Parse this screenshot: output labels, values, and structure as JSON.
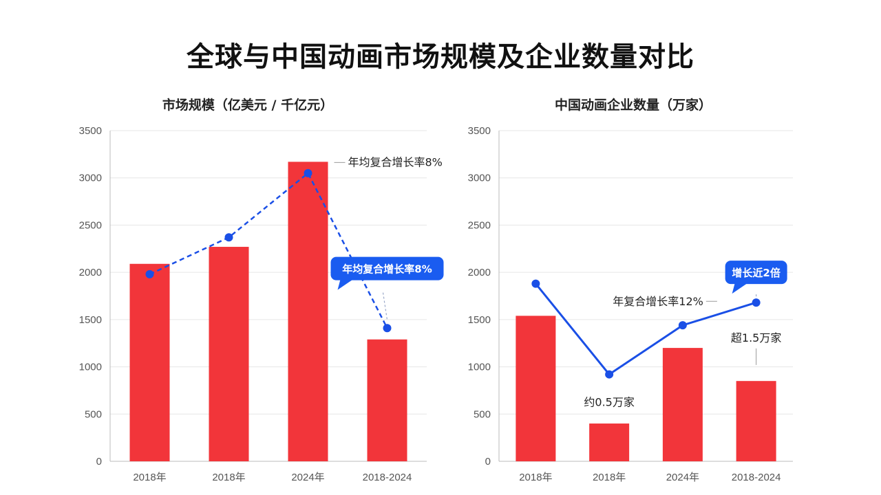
{
  "title": "全球与中国动画市场规模及企业数量对比",
  "colors": {
    "bar": "#f2353a",
    "line": "#1a4fe6",
    "callout": "#1a5cf0",
    "grid": "#e6e6e6",
    "axis": "#bbbbbb"
  },
  "chart_data": [
    {
      "type": "bar",
      "title": "市场规模（亿美元 / 千亿元）",
      "categories": [
        "2018年",
        "2018年",
        "2024年",
        "2018-2024"
      ],
      "ylim": [
        0,
        3500
      ],
      "yticks": [
        0,
        500,
        1000,
        1500,
        2000,
        2500,
        3000,
        3500
      ],
      "grid": true,
      "series": [
        {
          "type": "bar",
          "values": [
            2090,
            2270,
            3170,
            1290
          ]
        },
        {
          "type": "line",
          "style": "dashed",
          "values": [
            1980,
            2370,
            3050,
            1410
          ]
        }
      ],
      "annotations": [
        {
          "text": "年均复合增长率8%",
          "category_index": 2,
          "y": 3170,
          "style": "label"
        },
        {
          "text": "年均复合增长率8%",
          "category_index": 3,
          "y": 2040,
          "style": "callout"
        }
      ]
    },
    {
      "type": "bar",
      "title": "中国动画企业数量（万家）",
      "categories": [
        "2018年",
        "2018年",
        "2024年",
        "2018-2024"
      ],
      "ylim": [
        0,
        3500
      ],
      "yticks": [
        0,
        500,
        1000,
        1500,
        2000,
        2500,
        3000,
        3500
      ],
      "grid": true,
      "series": [
        {
          "type": "bar",
          "values": [
            1540,
            400,
            1200,
            850
          ]
        },
        {
          "type": "line",
          "style": "solid",
          "values": [
            1880,
            920,
            1440,
            1680
          ]
        }
      ],
      "annotations": [
        {
          "text": "约0.5万家",
          "category_index": 1,
          "y": 500,
          "style": "plain"
        },
        {
          "text": "超1.5万家",
          "category_index": 3,
          "y": 1180,
          "style": "plain"
        },
        {
          "text": "年复合增长率12%",
          "category_index": 2,
          "y": 1650,
          "style": "label"
        },
        {
          "text": "增长近2倍",
          "category_index": 3,
          "y": 2000,
          "style": "callout"
        }
      ]
    }
  ]
}
